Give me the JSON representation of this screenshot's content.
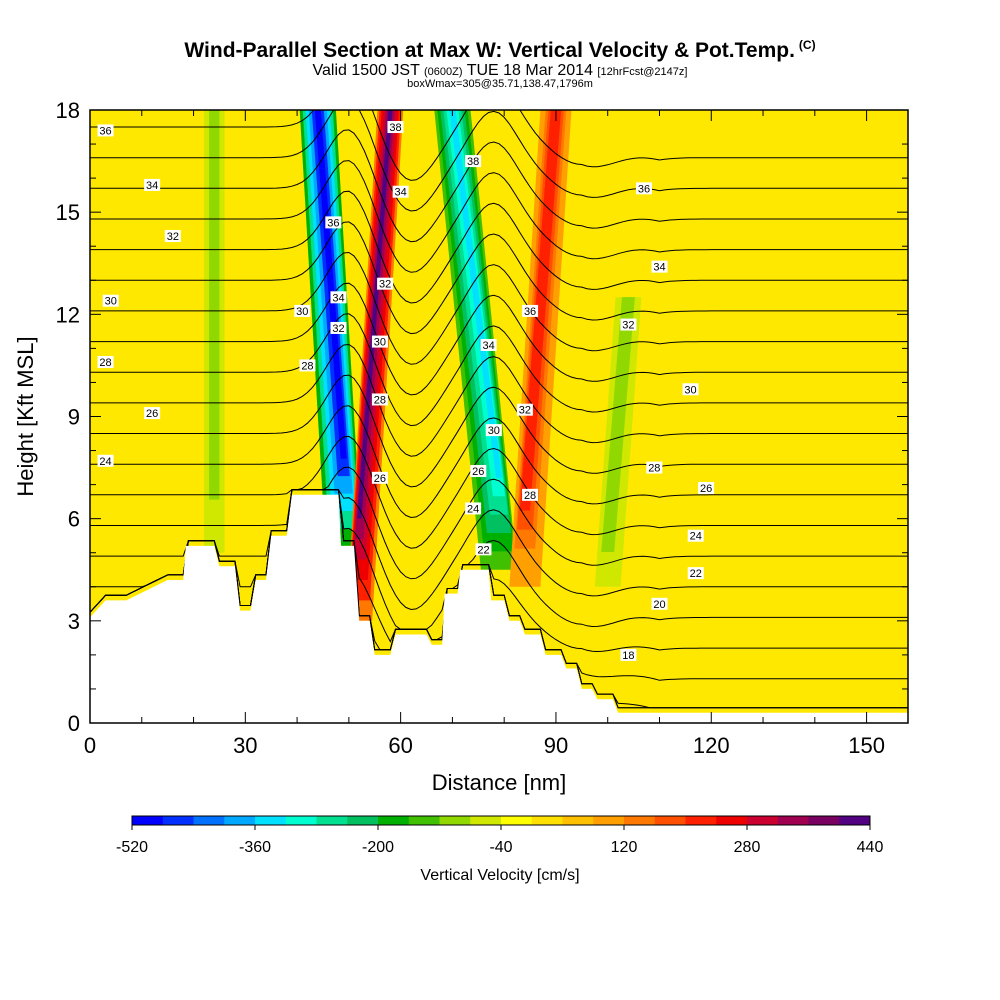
{
  "header": {
    "title": "Wind-Parallel Section at Max W: Vertical Velocity & Pot.Temp.",
    "title_mark": "(C)",
    "valid_prefix": "Valid 1500 JST",
    "valid_utc": "(0600Z)",
    "valid_date": "TUE 18 Mar 2014",
    "valid_fcst": "[12hrFcst@2147z]",
    "box_info": "boxWmax=305@35.71,138.47,1796m"
  },
  "chart_data": {
    "type": "heatmap",
    "xlabel": "Distance [nm]",
    "ylabel": "Height [Kft MSL]",
    "xlim": [
      0,
      158
    ],
    "ylim": [
      0,
      18
    ],
    "x_ticks": [
      0,
      30,
      60,
      90,
      120,
      150
    ],
    "y_ticks": [
      0,
      3,
      6,
      9,
      12,
      15,
      18
    ],
    "grid": false,
    "colorbar": {
      "label": "Vertical Velocity [cm/s]",
      "placement": "bottom",
      "tick_labels": [
        "-520",
        "-360",
        "-200",
        "-40",
        "120",
        "280",
        "440"
      ],
      "colors": [
        "#0000ff",
        "#0030ff",
        "#0070ff",
        "#00a8ff",
        "#00e0ff",
        "#00ffd0",
        "#00e090",
        "#00c060",
        "#00b000",
        "#40c000",
        "#90d800",
        "#d0e800",
        "#ffff00",
        "#ffe000",
        "#ffc000",
        "#ffa000",
        "#ff7800",
        "#ff5000",
        "#ff2000",
        "#ee0000",
        "#cc0030",
        "#a00050",
        "#780060",
        "#500080"
      ]
    },
    "background_color": "#ffe800",
    "vertical_velocity_features": [
      {
        "kind": "downdraft",
        "x_bottom": 49,
        "x_top": 44,
        "y_bottom": 5.2,
        "y_top": 18,
        "peak": -520,
        "width": 7
      },
      {
        "kind": "updraft",
        "x_bottom": 52,
        "x_top": 58,
        "y_bottom": 3.0,
        "y_top": 18,
        "peak": 400,
        "width": 5
      },
      {
        "kind": "downdraft",
        "x_bottom": 79,
        "x_top": 70,
        "y_bottom": 4.5,
        "y_top": 18,
        "peak": -340,
        "width": 7
      },
      {
        "kind": "updraft",
        "x_bottom": 84,
        "x_top": 90,
        "y_bottom": 4.0,
        "y_top": 18,
        "peak": 230,
        "width": 6
      },
      {
        "kind": "downdraft",
        "x_bottom": 24,
        "x_top": 24,
        "y_bottom": 5.0,
        "y_top": 18,
        "peak": -120,
        "width": 4
      },
      {
        "kind": "downdraft",
        "x_bottom": 100,
        "x_top": 104,
        "y_bottom": 4.0,
        "y_top": 12.5,
        "peak": -110,
        "width": 5
      }
    ],
    "terrain": [
      [
        0,
        3.1
      ],
      [
        3,
        3.6
      ],
      [
        7,
        3.6
      ],
      [
        15,
        4.2
      ],
      [
        18,
        4.2
      ],
      [
        18.5,
        5.2
      ],
      [
        24,
        5.2
      ],
      [
        25,
        4.6
      ],
      [
        28,
        4.6
      ],
      [
        29,
        3.3
      ],
      [
        31,
        3.3
      ],
      [
        32,
        4.2
      ],
      [
        34,
        4.2
      ],
      [
        35,
        5.5
      ],
      [
        38,
        5.5
      ],
      [
        39,
        6.7
      ],
      [
        48,
        6.7
      ],
      [
        48.5,
        5.2
      ],
      [
        51,
        5.2
      ],
      [
        52,
        3.0
      ],
      [
        54,
        3.0
      ],
      [
        55,
        2.0
      ],
      [
        58,
        2.0
      ],
      [
        59,
        2.6
      ],
      [
        65,
        2.6
      ],
      [
        66,
        2.3
      ],
      [
        68,
        2.3
      ],
      [
        68.5,
        3.8
      ],
      [
        71,
        3.8
      ],
      [
        71.5,
        4.5
      ],
      [
        77,
        4.5
      ],
      [
        77.5,
        3.6
      ],
      [
        80,
        3.6
      ],
      [
        81,
        3.0
      ],
      [
        83,
        3.0
      ],
      [
        84,
        2.6
      ],
      [
        87,
        2.6
      ],
      [
        88,
        2.0
      ],
      [
        91,
        2.0
      ],
      [
        92,
        1.6
      ],
      [
        94,
        1.6
      ],
      [
        95,
        1.0
      ],
      [
        97,
        1.0
      ],
      [
        98,
        0.7
      ],
      [
        101,
        0.7
      ],
      [
        102,
        0.3
      ],
      [
        158,
        0.3
      ]
    ],
    "potential_temperature_labels": [
      {
        "x": 3,
        "y": 17.4,
        "label": "36"
      },
      {
        "x": 12,
        "y": 15.8,
        "label": "34"
      },
      {
        "x": 16,
        "y": 14.3,
        "label": "32"
      },
      {
        "x": 4,
        "y": 12.4,
        "label": "30"
      },
      {
        "x": 3,
        "y": 10.6,
        "label": "28"
      },
      {
        "x": 12,
        "y": 9.1,
        "label": "26"
      },
      {
        "x": 3,
        "y": 7.7,
        "label": "24"
      },
      {
        "x": 41,
        "y": 12.1,
        "label": "30"
      },
      {
        "x": 42,
        "y": 10.5,
        "label": "28"
      },
      {
        "x": 47,
        "y": 14.7,
        "label": "36"
      },
      {
        "x": 48,
        "y": 12.5,
        "label": "34"
      },
      {
        "x": 48,
        "y": 11.6,
        "label": "32"
      },
      {
        "x": 59,
        "y": 17.5,
        "label": "38"
      },
      {
        "x": 60,
        "y": 15.6,
        "label": "34"
      },
      {
        "x": 57,
        "y": 12.9,
        "label": "32"
      },
      {
        "x": 56,
        "y": 11.2,
        "label": "30"
      },
      {
        "x": 56,
        "y": 9.5,
        "label": "28"
      },
      {
        "x": 56,
        "y": 7.2,
        "label": "26"
      },
      {
        "x": 74,
        "y": 16.5,
        "label": "38"
      },
      {
        "x": 85,
        "y": 12.1,
        "label": "36"
      },
      {
        "x": 77,
        "y": 11.1,
        "label": "34"
      },
      {
        "x": 84,
        "y": 9.2,
        "label": "32"
      },
      {
        "x": 78,
        "y": 8.6,
        "label": "30"
      },
      {
        "x": 75,
        "y": 7.4,
        "label": "26"
      },
      {
        "x": 85,
        "y": 6.7,
        "label": "28"
      },
      {
        "x": 74,
        "y": 6.3,
        "label": "24"
      },
      {
        "x": 76,
        "y": 5.1,
        "label": "22"
      },
      {
        "x": 107,
        "y": 15.7,
        "label": "36"
      },
      {
        "x": 110,
        "y": 13.4,
        "label": "34"
      },
      {
        "x": 104,
        "y": 11.7,
        "label": "32"
      },
      {
        "x": 116,
        "y": 9.8,
        "label": "30"
      },
      {
        "x": 109,
        "y": 7.5,
        "label": "28"
      },
      {
        "x": 119,
        "y": 6.9,
        "label": "26"
      },
      {
        "x": 117,
        "y": 5.5,
        "label": "24"
      },
      {
        "x": 117,
        "y": 4.4,
        "label": "22"
      },
      {
        "x": 110,
        "y": 3.5,
        "label": "20"
      },
      {
        "x": 104,
        "y": 2.0,
        "label": "18"
      }
    ],
    "potential_temperature_levels": [
      18,
      19,
      20,
      21,
      22,
      23,
      24,
      25,
      26,
      27,
      28,
      29,
      30,
      31,
      32,
      33,
      34,
      35,
      36,
      37,
      38
    ]
  }
}
